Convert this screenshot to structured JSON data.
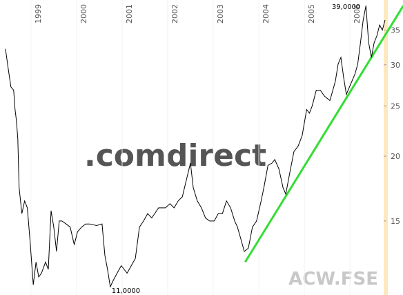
{
  "chart_data": {
    "type": "line",
    "scale": "log",
    "x": [
      1998.44,
      1998.5,
      1998.56,
      1998.62,
      1998.65,
      1998.68,
      1998.71,
      1998.74,
      1998.8,
      1998.86,
      1998.92,
      1998.98,
      1999.05,
      1999.11,
      1999.17,
      1999.23,
      1999.32,
      1999.38,
      1999.44,
      1999.5,
      1999.56,
      1999.62,
      1999.68,
      1999.77,
      1999.86,
      1999.95,
      2000.02,
      2000.11,
      2000.2,
      2000.29,
      2000.44,
      2000.56,
      2000.62,
      2000.68,
      2000.74,
      2000.8,
      2000.89,
      2000.98,
      2001.11,
      2001.2,
      2001.29,
      2001.38,
      2001.47,
      2001.56,
      2001.65,
      2001.8,
      2001.95,
      2002.05,
      2002.14,
      2002.23,
      2002.32,
      2002.41,
      2002.5,
      2002.56,
      2002.65,
      2002.74,
      2002.83,
      2002.92,
      2003.02,
      2003.11,
      2003.2,
      2003.29,
      2003.38,
      2003.47,
      2003.53,
      2003.62,
      2003.68,
      2003.77,
      2003.86,
      2003.95,
      2004.05,
      2004.11,
      2004.2,
      2004.29,
      2004.35,
      2004.44,
      2004.53,
      2004.59,
      2004.68,
      2004.77,
      2004.86,
      2004.95,
      2005.05,
      2005.11,
      2005.17,
      2005.26,
      2005.35,
      2005.44,
      2005.56,
      2005.68,
      2005.74,
      2005.8,
      2005.86,
      2005.92,
      2006.02,
      2006.11,
      2006.17,
      2006.23,
      2006.29,
      2006.35,
      2006.41,
      2006.47,
      2006.53,
      2006.59,
      2006.65,
      2006.71,
      2006.77
    ],
    "series": [
      {
        "color": "#000000",
        "values": [
          32.2,
          29.5,
          27.2,
          26.8,
          24.6,
          23.4,
          21.6,
          17.4,
          15.5,
          16.4,
          15.9,
          13.7,
          11.3,
          12.5,
          11.7,
          11.9,
          12.5,
          12.1,
          15.7,
          14.6,
          13.1,
          15.0,
          15.0,
          14.8,
          14.6,
          13.5,
          14.3,
          14.6,
          14.8,
          14.8,
          14.7,
          14.8,
          12.9,
          12.1,
          11.2,
          11.5,
          11.9,
          12.3,
          11.9,
          12.3,
          12.7,
          14.6,
          15.0,
          15.5,
          15.2,
          15.9,
          15.9,
          16.2,
          15.9,
          16.4,
          16.7,
          18.0,
          19.4,
          17.4,
          16.4,
          15.9,
          15.2,
          15.0,
          15.0,
          15.5,
          15.5,
          16.4,
          15.9,
          15.0,
          14.6,
          13.7,
          13.1,
          13.3,
          14.6,
          15.0,
          16.4,
          17.4,
          19.2,
          19.4,
          19.7,
          18.9,
          17.4,
          16.9,
          18.6,
          20.4,
          20.9,
          21.9,
          24.6,
          24.2,
          25.0,
          26.8,
          26.8,
          26.1,
          25.6,
          27.9,
          30.1,
          31.0,
          28.4,
          26.3,
          27.6,
          28.8,
          30.1,
          33.1,
          36.6,
          39.0,
          33.1,
          31.0,
          33.1,
          34.1,
          35.8,
          35.0,
          36.6
        ]
      }
    ],
    "trendline": {
      "color": "#33dd33",
      "x": [
        2003.7,
        2007.17
      ],
      "values": [
        12.5,
        39.0
      ]
    },
    "max_label": "39,0000",
    "min_label": "11,0000",
    "xlim": [
      1998.32,
      2006.8
    ],
    "xticks": [
      1999,
      2000,
      2001,
      2002,
      2003,
      2004,
      2005,
      2006
    ],
    "ylim": [
      10.8,
      40.0
    ],
    "yticks": [
      15,
      20,
      25,
      30,
      35
    ],
    "watermark": ".comdirect",
    "symbol": "ACW.FSE"
  }
}
